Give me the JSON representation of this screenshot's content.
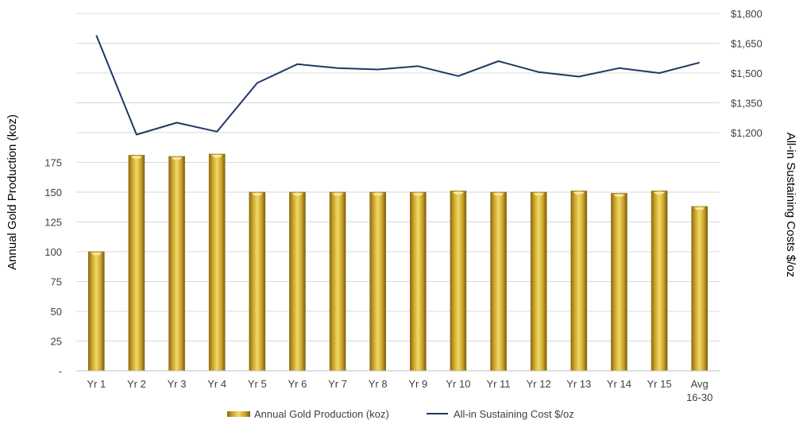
{
  "chart_data": {
    "type": "bar",
    "categories": [
      [
        "Yr 1"
      ],
      [
        "Yr 2"
      ],
      [
        "Yr 3"
      ],
      [
        "Yr 4"
      ],
      [
        "Yr 5"
      ],
      [
        "Yr 6"
      ],
      [
        "Yr 7"
      ],
      [
        "Yr 8"
      ],
      [
        "Yr 9"
      ],
      [
        "Yr 10"
      ],
      [
        "Yr 11"
      ],
      [
        "Yr 12"
      ],
      [
        "Yr 13"
      ],
      [
        "Yr 14"
      ],
      [
        "Yr 15"
      ],
      [
        "Avg",
        "16-30"
      ]
    ],
    "series": [
      {
        "name": "Annual Gold Production (koz)",
        "type": "bar",
        "axis": "left",
        "values": [
          100,
          181,
          180,
          182,
          150,
          150,
          150,
          150,
          150,
          151,
          150,
          150,
          151,
          149,
          151,
          138
        ]
      },
      {
        "name": "All-in Sustaining Cost $/oz",
        "type": "line",
        "axis": "right",
        "values": [
          1690,
          1190,
          1250,
          1205,
          1450,
          1545,
          1525,
          1518,
          1535,
          1485,
          1560,
          1505,
          1482,
          1525,
          1500,
          1553
        ]
      }
    ],
    "y_left": {
      "label": "Annual Gold Production (koz)",
      "ticks": [
        "-",
        "25",
        "50",
        "75",
        "100",
        "125",
        "150",
        "175"
      ],
      "tick_values": [
        0,
        25,
        50,
        75,
        100,
        125,
        150,
        175
      ],
      "range": [
        0,
        300
      ]
    },
    "y_right": {
      "label": "All-in Sustaining Costs $/oz",
      "ticks": [
        "$1,200",
        "$1,350",
        "$1,500",
        "$1,650",
        "$1,800"
      ],
      "tick_values": [
        1200,
        1350,
        1500,
        1650,
        1800
      ],
      "range": [
        0,
        1800
      ]
    },
    "legend": {
      "position": "bottom",
      "items": [
        "Annual Gold Production (koz)",
        "All-in Sustaining Cost $/oz"
      ]
    },
    "grid": true,
    "colors": {
      "bar": "#c9a227",
      "bar_dark": "#8c6b12",
      "bar_light": "#f2d968",
      "line": "#1f3864",
      "grid": "#d9d9d9",
      "axis": "#bfbfbf"
    }
  }
}
